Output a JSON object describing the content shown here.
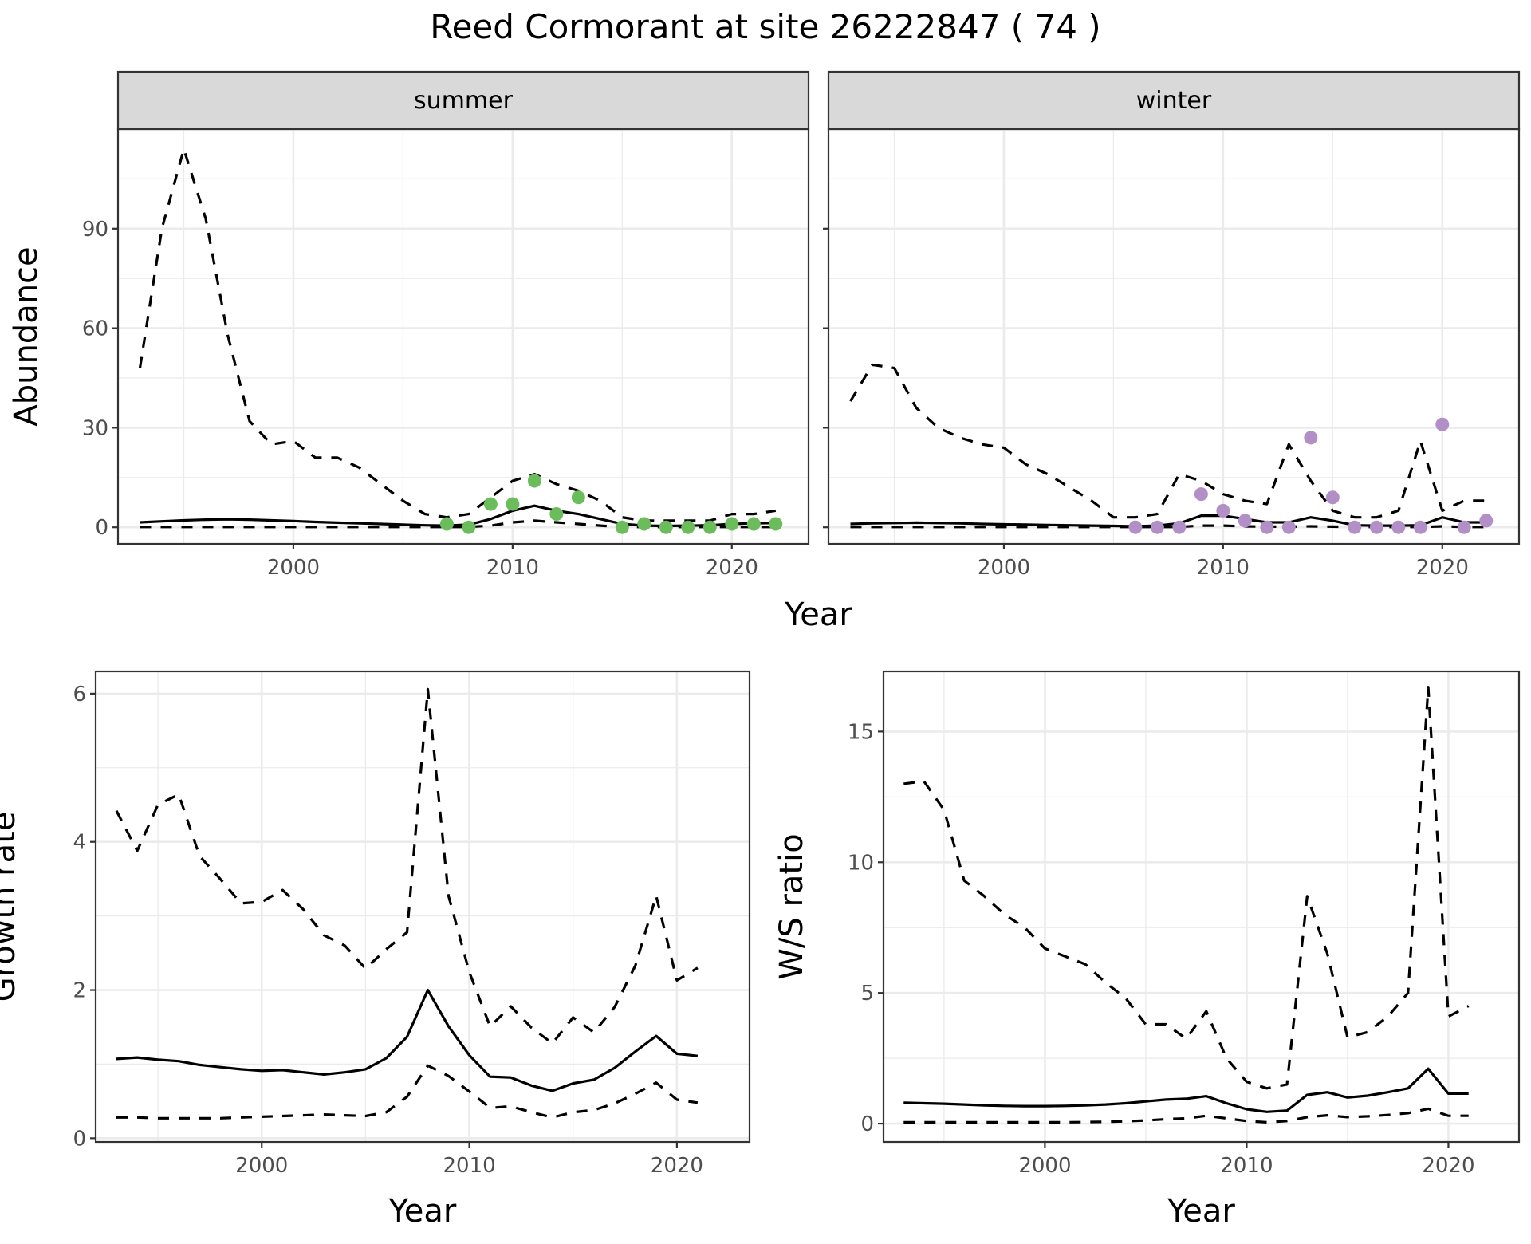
{
  "title": "Reed Cormorant at site 26222847 ( 74 )",
  "chart_data": [
    {
      "type": "line",
      "facet": "summer",
      "xlabel": "Year",
      "ylabel": "Abundance",
      "xlim": [
        1992,
        2023.5
      ],
      "ylim": [
        -5,
        120
      ],
      "xticks": [
        2000,
        2010,
        2020
      ],
      "yticks": [
        0,
        30,
        60,
        90
      ],
      "point_color": "#6abd5a",
      "years": [
        1993,
        1994,
        1995,
        1996,
        1997,
        1998,
        1999,
        2000,
        2001,
        2002,
        2003,
        2004,
        2005,
        2006,
        2007,
        2008,
        2009,
        2010,
        2011,
        2012,
        2013,
        2014,
        2015,
        2016,
        2017,
        2018,
        2019,
        2020,
        2021,
        2022
      ],
      "estimate": [
        1.5,
        1.8,
        2.1,
        2.3,
        2.4,
        2.3,
        2.1,
        1.9,
        1.6,
        1.4,
        1.2,
        1.0,
        0.8,
        0.6,
        0.5,
        0.8,
        2.5,
        5.0,
        6.5,
        5.0,
        4.0,
        2.5,
        1.0,
        0.5,
        0.4,
        0.5,
        0.6,
        1.0,
        1.2,
        1.3
      ],
      "lower": [
        0.1,
        0.1,
        0.1,
        0.1,
        0.1,
        0.1,
        0.1,
        0.1,
        0.1,
        0.1,
        0.1,
        0.1,
        0.1,
        0.1,
        0.1,
        0.1,
        0.5,
        1.5,
        2.0,
        1.5,
        1.0,
        0.5,
        0.1,
        0.1,
        0.1,
        0.1,
        0.1,
        0.1,
        0.1,
        0.1
      ],
      "upper": [
        48,
        90,
        114,
        93,
        58,
        32,
        25,
        26,
        21,
        21,
        18,
        13,
        8,
        4,
        3,
        4,
        9,
        14,
        16,
        13,
        11,
        8,
        3,
        2,
        2,
        2,
        2,
        4,
        4,
        5
      ],
      "obs_years": [
        2007,
        2008,
        2009,
        2010,
        2011,
        2012,
        2013,
        2015,
        2016,
        2017,
        2018,
        2019,
        2020,
        2021,
        2022
      ],
      "obs_values": [
        1,
        0,
        7,
        7,
        14,
        4,
        9,
        0,
        1,
        0,
        0,
        0,
        1,
        1,
        1
      ]
    },
    {
      "type": "line",
      "facet": "winter",
      "xlabel": "Year",
      "ylabel": "Abundance",
      "xlim": [
        1992,
        2023.5
      ],
      "ylim": [
        -5,
        120
      ],
      "xticks": [
        2000,
        2010,
        2020
      ],
      "yticks": [
        0,
        30,
        60,
        90
      ],
      "point_color": "#b38fc8",
      "years": [
        1993,
        1994,
        1995,
        1996,
        1997,
        1998,
        1999,
        2000,
        2001,
        2002,
        2003,
        2004,
        2005,
        2006,
        2007,
        2008,
        2009,
        2010,
        2011,
        2012,
        2013,
        2014,
        2015,
        2016,
        2017,
        2018,
        2019,
        2020,
        2021,
        2022
      ],
      "estimate": [
        1.0,
        1.2,
        1.3,
        1.4,
        1.3,
        1.2,
        1.0,
        0.9,
        0.8,
        0.7,
        0.6,
        0.5,
        0.4,
        0.3,
        0.5,
        1.2,
        3.5,
        3.5,
        2.5,
        1.5,
        1.5,
        3.0,
        2.0,
        0.6,
        0.5,
        0.5,
        0.6,
        3.0,
        1.5,
        1.5
      ],
      "lower": [
        0.1,
        0.1,
        0.1,
        0.1,
        0.1,
        0.1,
        0.1,
        0.1,
        0.1,
        0.1,
        0.1,
        0.1,
        0.1,
        0.1,
        0.1,
        0.1,
        0.5,
        0.5,
        0.3,
        0.2,
        0.2,
        0.3,
        0.2,
        0.1,
        0.1,
        0.1,
        0.1,
        0.3,
        0.1,
        0.1
      ],
      "upper": [
        38,
        49,
        48,
        36,
        30,
        27,
        25,
        24,
        19,
        16,
        12,
        8,
        3,
        3,
        4,
        16,
        14,
        10,
        8,
        7,
        25,
        14,
        5,
        3,
        3,
        5,
        26,
        5,
        8,
        8
      ],
      "obs_years": [
        2006,
        2007,
        2008,
        2009,
        2010,
        2011,
        2012,
        2013,
        2014,
        2015,
        2016,
        2017,
        2018,
        2019,
        2020,
        2021,
        2022
      ],
      "obs_values": [
        0,
        0,
        0,
        10,
        5,
        2,
        0,
        0,
        27,
        9,
        0,
        0,
        0,
        0,
        31,
        0,
        2
      ]
    },
    {
      "type": "line",
      "xlabel": "Year",
      "ylabel": "Growth rate",
      "xlim": [
        1992,
        2023.5
      ],
      "ylim": [
        -0.05,
        6.3
      ],
      "xticks": [
        2000,
        2010,
        2020
      ],
      "yticks": [
        0,
        2,
        4,
        6
      ],
      "years": [
        1993,
        1994,
        1995,
        1996,
        1997,
        1998,
        1999,
        2000,
        2001,
        2002,
        2003,
        2004,
        2005,
        2006,
        2007,
        2008,
        2009,
        2010,
        2011,
        2012,
        2013,
        2014,
        2015,
        2016,
        2017,
        2018,
        2019,
        2020,
        2021
      ],
      "estimate": [
        1.07,
        1.09,
        1.06,
        1.04,
        0.99,
        0.96,
        0.93,
        0.91,
        0.92,
        0.89,
        0.86,
        0.89,
        0.93,
        1.08,
        1.37,
        2.0,
        1.51,
        1.12,
        0.83,
        0.82,
        0.71,
        0.64,
        0.74,
        0.79,
        0.95,
        1.17,
        1.38,
        1.14,
        1.11
      ],
      "lower": [
        0.28,
        0.28,
        0.27,
        0.27,
        0.27,
        0.27,
        0.28,
        0.29,
        0.3,
        0.31,
        0.32,
        0.31,
        0.3,
        0.35,
        0.56,
        0.98,
        0.84,
        0.63,
        0.41,
        0.43,
        0.35,
        0.28,
        0.35,
        0.38,
        0.47,
        0.6,
        0.75,
        0.52,
        0.48
      ],
      "upper": [
        4.42,
        3.88,
        4.5,
        4.64,
        3.81,
        3.5,
        3.17,
        3.19,
        3.35,
        3.09,
        2.74,
        2.6,
        2.29,
        2.55,
        2.78,
        6.06,
        3.27,
        2.24,
        1.51,
        1.78,
        1.49,
        1.28,
        1.63,
        1.43,
        1.77,
        2.33,
        3.27,
        2.13,
        2.3
      ]
    },
    {
      "type": "line",
      "xlabel": "Year",
      "ylabel": "W/S ratio",
      "xlim": [
        1992,
        2023.5
      ],
      "ylim": [
        -0.7,
        17.3
      ],
      "xticks": [
        2000,
        2010,
        2020
      ],
      "yticks": [
        0,
        5,
        10,
        15
      ],
      "years": [
        1993,
        1994,
        1995,
        1996,
        1997,
        1998,
        1999,
        2000,
        2001,
        2002,
        2003,
        2004,
        2005,
        2006,
        2007,
        2008,
        2009,
        2010,
        2011,
        2012,
        2013,
        2014,
        2015,
        2016,
        2017,
        2018,
        2019,
        2020,
        2021
      ],
      "estimate": [
        0.8,
        0.78,
        0.76,
        0.73,
        0.7,
        0.68,
        0.67,
        0.67,
        0.68,
        0.7,
        0.73,
        0.78,
        0.85,
        0.92,
        0.95,
        1.05,
        0.78,
        0.55,
        0.45,
        0.5,
        1.1,
        1.2,
        1.0,
        1.07,
        1.2,
        1.35,
        2.1,
        1.15,
        1.15
      ],
      "lower": [
        0.05,
        0.05,
        0.05,
        0.05,
        0.05,
        0.05,
        0.05,
        0.05,
        0.05,
        0.06,
        0.07,
        0.09,
        0.12,
        0.17,
        0.2,
        0.3,
        0.2,
        0.1,
        0.05,
        0.1,
        0.25,
        0.32,
        0.25,
        0.28,
        0.33,
        0.4,
        0.57,
        0.3,
        0.3
      ],
      "upper": [
        13.0,
        13.1,
        12.0,
        9.3,
        8.7,
        8.0,
        7.5,
        6.7,
        6.4,
        6.1,
        5.4,
        4.8,
        3.8,
        3.8,
        3.25,
        4.3,
        2.5,
        1.6,
        1.35,
        1.5,
        8.7,
        6.5,
        3.3,
        3.5,
        4.1,
        5.0,
        16.7,
        4.1,
        4.5
      ]
    }
  ]
}
